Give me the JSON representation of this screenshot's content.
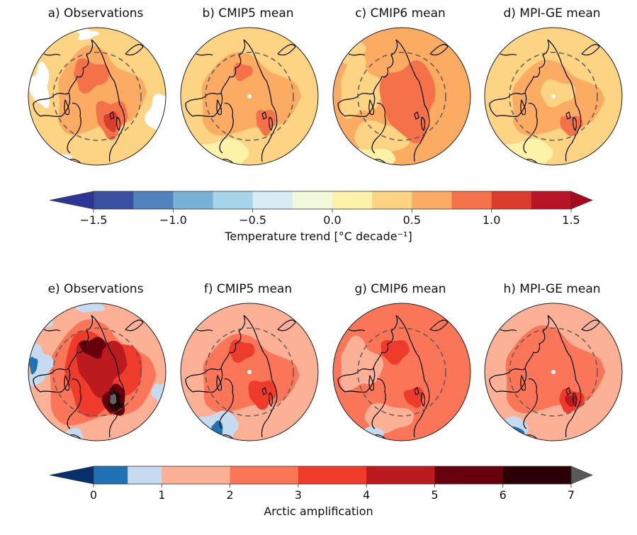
{
  "figure": {
    "rows": [
      {
        "panels": [
          {
            "id": "a",
            "title": "a) Observations",
            "style": "obs_trend"
          },
          {
            "id": "b",
            "title": "b) CMIP5 mean",
            "style": "cmip5_trend"
          },
          {
            "id": "c",
            "title": "c) CMIP6 mean",
            "style": "cmip6_trend"
          },
          {
            "id": "d",
            "title": "d) MPI-GE mean",
            "style": "mpige_trend"
          }
        ],
        "colorbar": {
          "label": "Temperature trend [°C decade⁻¹]",
          "ticks": [
            "−1.5",
            "−1.0",
            "−0.5",
            "0.0",
            "0.5",
            "1.0",
            "1.5"
          ],
          "tick_values": [
            -1.5,
            -1.0,
            -0.5,
            0.0,
            0.5,
            1.0,
            1.5
          ],
          "bounds": [
            -1.5,
            -1.25,
            -1.0,
            -0.75,
            -0.5,
            -0.25,
            0.0,
            0.25,
            0.5,
            0.75,
            1.0,
            1.25,
            1.5
          ],
          "colors": [
            "#313695",
            "#4575b4",
            "#74add1",
            "#abd9e9",
            "#e0f3f8",
            "#ffffbf",
            "#fee090",
            "#fdae61",
            "#f46d43",
            "#d73027",
            "#a50026",
            "#a50026"
          ],
          "segment_colors": [
            "#3a4fa0",
            "#5182bd",
            "#79b1d6",
            "#a7d4e9",
            "#d8ecf3",
            "#f2f9da",
            "#fdf3a8",
            "#fdd384",
            "#fcab62",
            "#f5714a",
            "#da3d2c",
            "#b81427"
          ],
          "under_color": "#2e3592",
          "over_color": "#a7091f",
          "extend": "both"
        }
      },
      {
        "panels": [
          {
            "id": "e",
            "title": "e) Observations",
            "style": "obs_aa"
          },
          {
            "id": "f",
            "title": "f) CMIP5 mean",
            "style": "cmip5_aa"
          },
          {
            "id": "g",
            "title": "g) CMIP6 mean",
            "style": "cmip6_aa"
          },
          {
            "id": "h",
            "title": "h) MPI-GE mean",
            "style": "mpige_aa"
          }
        ],
        "colorbar": {
          "label": "Arctic amplification",
          "ticks": [
            "0",
            "1",
            "2",
            "3",
            "4",
            "5",
            "6",
            "7"
          ],
          "tick_values": [
            0,
            1,
            2,
            3,
            4,
            5,
            6,
            7
          ],
          "bounds": [
            0,
            0.5,
            1,
            2,
            3,
            4,
            5,
            6,
            7
          ],
          "segment_colors": [
            "#2171b5",
            "#c6dbef",
            "#fcb095",
            "#fb7558",
            "#ef3b2c",
            "#bb1a1f",
            "#67000d",
            "#2a0006"
          ],
          "under_color": "#08306b",
          "over_color": "#595959",
          "extend": "both"
        }
      }
    ],
    "arctic_circle_line": "dashed grey circle (Arctic circle)"
  }
}
